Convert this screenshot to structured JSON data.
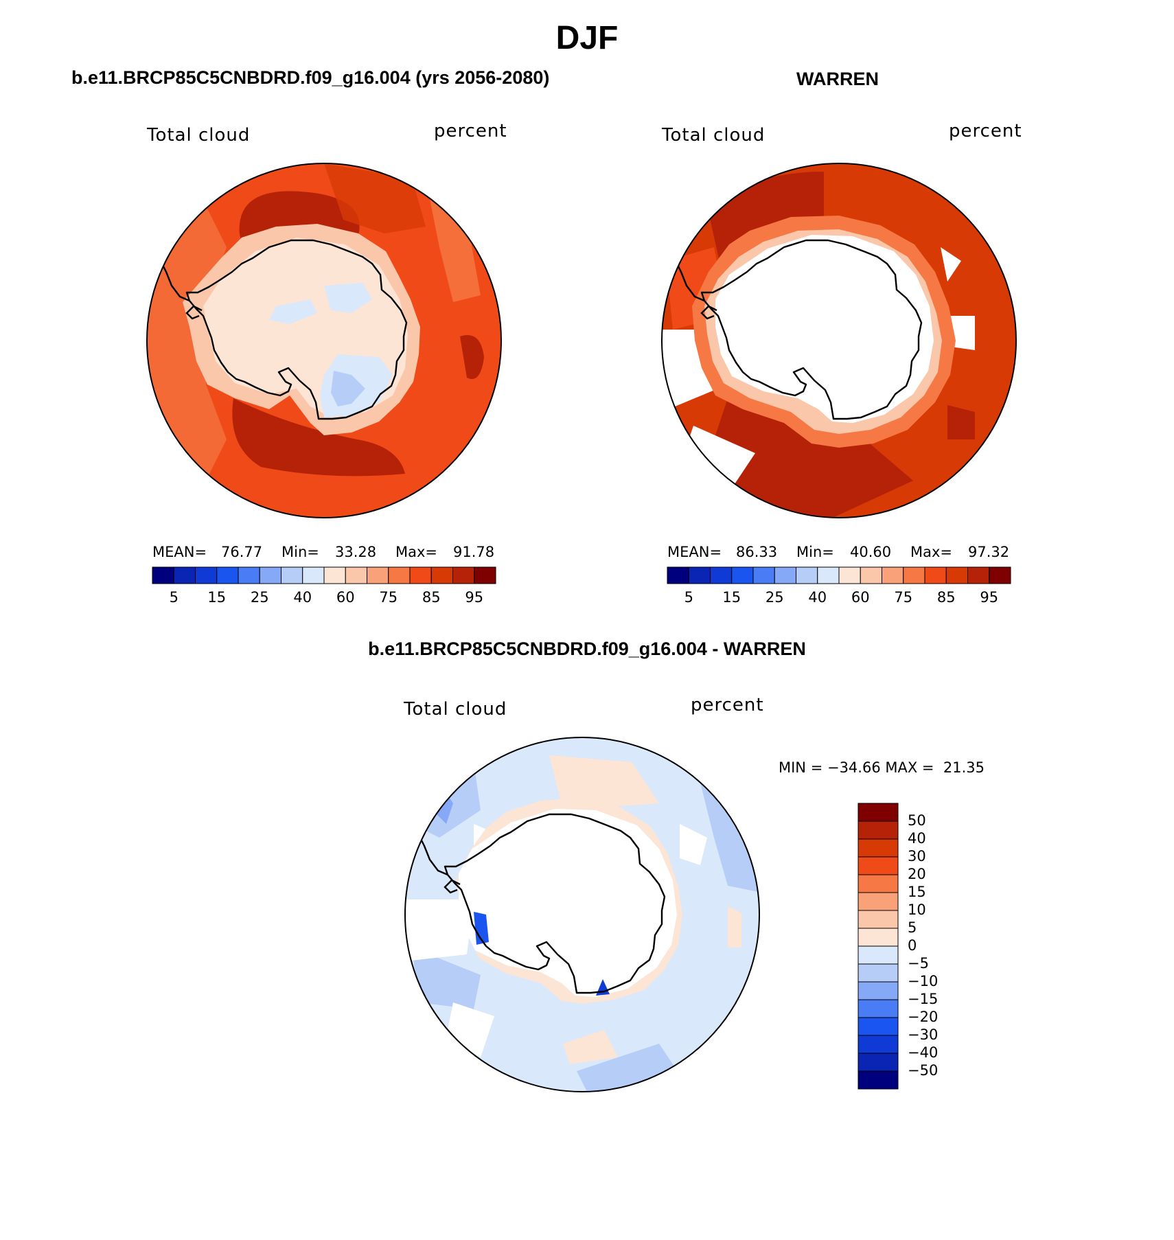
{
  "figure": {
    "title": "DJF",
    "panel1": {
      "title": "b.e11.BRCP85C5CNBDRD.f09_g16.004 (yrs 2056-2080)",
      "left_label": "Total cloud",
      "right_label": "percent",
      "stats": {
        "mean_label": "MEAN=",
        "mean": "76.77",
        "min_label": "Min=",
        "min": "33.28",
        "max_label": "Max=",
        "max": "91.78"
      }
    },
    "panel2": {
      "title": "WARREN",
      "left_label": "Total cloud",
      "right_label": "percent",
      "stats": {
        "mean_label": "MEAN=",
        "mean": "86.33",
        "min_label": "Min=",
        "min": "40.60",
        "max_label": "Max=",
        "max": "97.32"
      }
    },
    "diff_panel": {
      "title": "b.e11.BRCP85C5CNBDRD.f09_g16.004 - WARREN",
      "left_label": "Total cloud",
      "right_label": "percent",
      "minmax": "MIN = −34.66 MAX =  21.35"
    },
    "abs_colorbar": {
      "tick_labels": [
        "5",
        "15",
        "25",
        "40",
        "60",
        "75",
        "85",
        "95"
      ],
      "colors": [
        "#00007f",
        "#0a24b4",
        "#0f3ad6",
        "#1a55f0",
        "#4a7df5",
        "#86a9f7",
        "#b6cdf8",
        "#d9e8fa",
        "#fde5d5",
        "#fbc7aa",
        "#f9a27a",
        "#f67845",
        "#ef4a18",
        "#d83a06",
        "#b52208",
        "#7e0000"
      ]
    },
    "diff_colorbar": {
      "tick_labels": [
        "50",
        "40",
        "30",
        "20",
        "15",
        "10",
        "5",
        "0",
        "−5",
        "−10",
        "−15",
        "−20",
        "−30",
        "−40",
        "−50"
      ],
      "colors": [
        "#7e0000",
        "#b52208",
        "#d83a06",
        "#ef4a18",
        "#f67845",
        "#f9a27a",
        "#fbc7aa",
        "#fde5d5",
        "#d9e8fa",
        "#b6cdf8",
        "#86a9f7",
        "#4a7df5",
        "#1a55f0",
        "#0f3ad6",
        "#0a24b4",
        "#00007f"
      ]
    }
  }
}
